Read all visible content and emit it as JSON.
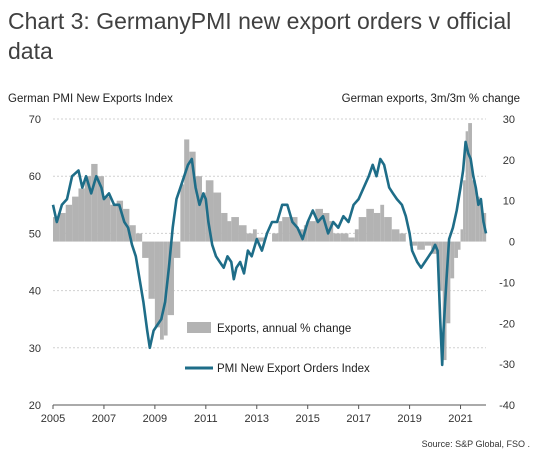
{
  "title": "Chart 3: GermanyPMI new export orders v official data",
  "left_axis_title": "German PMI New Exports Index",
  "right_axis_title": "German exports, 3m/3m % change",
  "source": "Source: S&P Global, FSO .",
  "colors": {
    "pmi_line": "#1e6d88",
    "exports_bars": "#b3b3b3",
    "grid": "#d0d0d0"
  },
  "chart_data": {
    "type": "bar",
    "xlim": [
      2005,
      2022
    ],
    "x_ticks": [
      "2005",
      "2007",
      "2009",
      "2011",
      "2013",
      "2015",
      "2017",
      "2019",
      "2021"
    ],
    "y_left": {
      "ylim": [
        20,
        70
      ],
      "ticks": [
        "20",
        "30",
        "40",
        "50",
        "60",
        "70"
      ]
    },
    "y_right": {
      "ylim": [
        -40,
        30
      ],
      "ticks": [
        "-40",
        "-30",
        "-20",
        "-10",
        "0",
        "10",
        "20",
        "30"
      ]
    },
    "grid": true,
    "series": [
      {
        "name": "Exports, annual % change",
        "type": "bar",
        "axis": "right",
        "points": [
          [
            2005.0,
            6
          ],
          [
            2005.25,
            7
          ],
          [
            2005.5,
            9
          ],
          [
            2005.75,
            11
          ],
          [
            2006.0,
            13
          ],
          [
            2006.25,
            16
          ],
          [
            2006.5,
            19
          ],
          [
            2006.75,
            16
          ],
          [
            2007.0,
            11
          ],
          [
            2007.25,
            9
          ],
          [
            2007.5,
            10
          ],
          [
            2007.75,
            8
          ],
          [
            2008.0,
            4
          ],
          [
            2008.25,
            2
          ],
          [
            2008.5,
            -4
          ],
          [
            2008.75,
            -14
          ],
          [
            2009.0,
            -21
          ],
          [
            2009.2,
            -24
          ],
          [
            2009.35,
            -23
          ],
          [
            2009.5,
            -18
          ],
          [
            2009.75,
            -4
          ],
          [
            2010.0,
            14
          ],
          [
            2010.15,
            25
          ],
          [
            2010.35,
            22
          ],
          [
            2010.6,
            16
          ],
          [
            2010.85,
            12
          ],
          [
            2011.0,
            15
          ],
          [
            2011.3,
            12
          ],
          [
            2011.6,
            7
          ],
          [
            2011.85,
            5
          ],
          [
            2012.0,
            6
          ],
          [
            2012.3,
            4
          ],
          [
            2012.6,
            2
          ],
          [
            2012.85,
            3
          ],
          [
            2013.0,
            1
          ],
          [
            2013.3,
            0
          ],
          [
            2013.6,
            2
          ],
          [
            2013.85,
            5
          ],
          [
            2014.0,
            6
          ],
          [
            2014.3,
            6
          ],
          [
            2014.6,
            3
          ],
          [
            2014.85,
            4
          ],
          [
            2015.0,
            5
          ],
          [
            2015.3,
            8
          ],
          [
            2015.6,
            7
          ],
          [
            2015.85,
            5
          ],
          [
            2016.0,
            2
          ],
          [
            2016.3,
            2
          ],
          [
            2016.6,
            1
          ],
          [
            2016.85,
            3
          ],
          [
            2017.0,
            6
          ],
          [
            2017.3,
            8
          ],
          [
            2017.6,
            7
          ],
          [
            2017.85,
            9
          ],
          [
            2018.0,
            6
          ],
          [
            2018.3,
            3
          ],
          [
            2018.6,
            2
          ],
          [
            2018.85,
            0
          ],
          [
            2019.0,
            -1
          ],
          [
            2019.3,
            -2
          ],
          [
            2019.6,
            -1
          ],
          [
            2019.85,
            -3
          ],
          [
            2020.0,
            -3
          ],
          [
            2020.15,
            -12
          ],
          [
            2020.3,
            -29
          ],
          [
            2020.45,
            -20
          ],
          [
            2020.6,
            -9
          ],
          [
            2020.75,
            -4
          ],
          [
            2020.9,
            -2
          ],
          [
            2021.0,
            3
          ],
          [
            2021.1,
            15
          ],
          [
            2021.2,
            27
          ],
          [
            2021.3,
            29
          ],
          [
            2021.45,
            15
          ],
          [
            2021.6,
            11
          ],
          [
            2021.75,
            10
          ],
          [
            2021.85,
            7
          ]
        ]
      },
      {
        "name": "PMI New Export Orders Index",
        "type": "line",
        "axis": "left",
        "points": [
          [
            2005.0,
            55
          ],
          [
            2005.15,
            52
          ],
          [
            2005.35,
            55
          ],
          [
            2005.55,
            56
          ],
          [
            2005.75,
            60
          ],
          [
            2006.0,
            61
          ],
          [
            2006.15,
            58
          ],
          [
            2006.3,
            60
          ],
          [
            2006.5,
            57
          ],
          [
            2006.7,
            60
          ],
          [
            2006.9,
            58
          ],
          [
            2007.0,
            56
          ],
          [
            2007.2,
            57
          ],
          [
            2007.4,
            55
          ],
          [
            2007.6,
            55
          ],
          [
            2007.8,
            52
          ],
          [
            2007.95,
            51
          ],
          [
            2008.1,
            48
          ],
          [
            2008.25,
            46
          ],
          [
            2008.4,
            42
          ],
          [
            2008.55,
            38
          ],
          [
            2008.7,
            33
          ],
          [
            2008.8,
            30
          ],
          [
            2008.95,
            33
          ],
          [
            2009.1,
            34
          ],
          [
            2009.25,
            35
          ],
          [
            2009.4,
            38
          ],
          [
            2009.55,
            44
          ],
          [
            2009.7,
            51
          ],
          [
            2009.85,
            56
          ],
          [
            2010.0,
            58
          ],
          [
            2010.15,
            60
          ],
          [
            2010.3,
            62
          ],
          [
            2010.45,
            63
          ],
          [
            2010.6,
            58
          ],
          [
            2010.75,
            55
          ],
          [
            2010.9,
            57
          ],
          [
            2011.0,
            56
          ],
          [
            2011.1,
            52
          ],
          [
            2011.25,
            48
          ],
          [
            2011.4,
            46
          ],
          [
            2011.55,
            45
          ],
          [
            2011.7,
            44
          ],
          [
            2011.85,
            46
          ],
          [
            2012.0,
            45
          ],
          [
            2012.1,
            42
          ],
          [
            2012.2,
            44
          ],
          [
            2012.35,
            45
          ],
          [
            2012.5,
            43
          ],
          [
            2012.65,
            47
          ],
          [
            2012.8,
            46
          ],
          [
            2013.0,
            49
          ],
          [
            2013.2,
            47
          ],
          [
            2013.4,
            50
          ],
          [
            2013.6,
            52
          ],
          [
            2013.8,
            52
          ],
          [
            2014.0,
            55
          ],
          [
            2014.2,
            55
          ],
          [
            2014.4,
            52
          ],
          [
            2014.6,
            51
          ],
          [
            2014.8,
            49
          ],
          [
            2015.0,
            52
          ],
          [
            2015.2,
            54
          ],
          [
            2015.4,
            52
          ],
          [
            2015.6,
            53
          ],
          [
            2015.8,
            50
          ],
          [
            2016.0,
            52
          ],
          [
            2016.2,
            51
          ],
          [
            2016.4,
            53
          ],
          [
            2016.6,
            52
          ],
          [
            2016.8,
            55
          ],
          [
            2017.0,
            56
          ],
          [
            2017.2,
            58
          ],
          [
            2017.4,
            60
          ],
          [
            2017.55,
            62
          ],
          [
            2017.7,
            60
          ],
          [
            2017.85,
            63
          ],
          [
            2018.0,
            62
          ],
          [
            2018.2,
            58
          ],
          [
            2018.35,
            57
          ],
          [
            2018.5,
            56
          ],
          [
            2018.7,
            55
          ],
          [
            2018.85,
            53
          ],
          [
            2019.0,
            50
          ],
          [
            2019.1,
            47
          ],
          [
            2019.3,
            45
          ],
          [
            2019.45,
            44
          ],
          [
            2019.6,
            45
          ],
          [
            2019.75,
            46
          ],
          [
            2019.9,
            47
          ],
          [
            2020.0,
            48
          ],
          [
            2020.1,
            47
          ],
          [
            2020.2,
            35
          ],
          [
            2020.28,
            27
          ],
          [
            2020.33,
            33
          ],
          [
            2020.45,
            42
          ],
          [
            2020.55,
            49
          ],
          [
            2020.7,
            51
          ],
          [
            2020.85,
            54
          ],
          [
            2021.0,
            58
          ],
          [
            2021.1,
            61
          ],
          [
            2021.2,
            66
          ],
          [
            2021.3,
            64
          ],
          [
            2021.4,
            63
          ],
          [
            2021.5,
            60
          ],
          [
            2021.6,
            58
          ],
          [
            2021.7,
            55
          ],
          [
            2021.8,
            56
          ],
          [
            2021.9,
            52
          ],
          [
            2022.0,
            50
          ]
        ]
      }
    ],
    "legend": [
      "Exports, annual % change",
      "PMI New Export Orders Index"
    ],
    "legend_position": "bottom-center"
  }
}
